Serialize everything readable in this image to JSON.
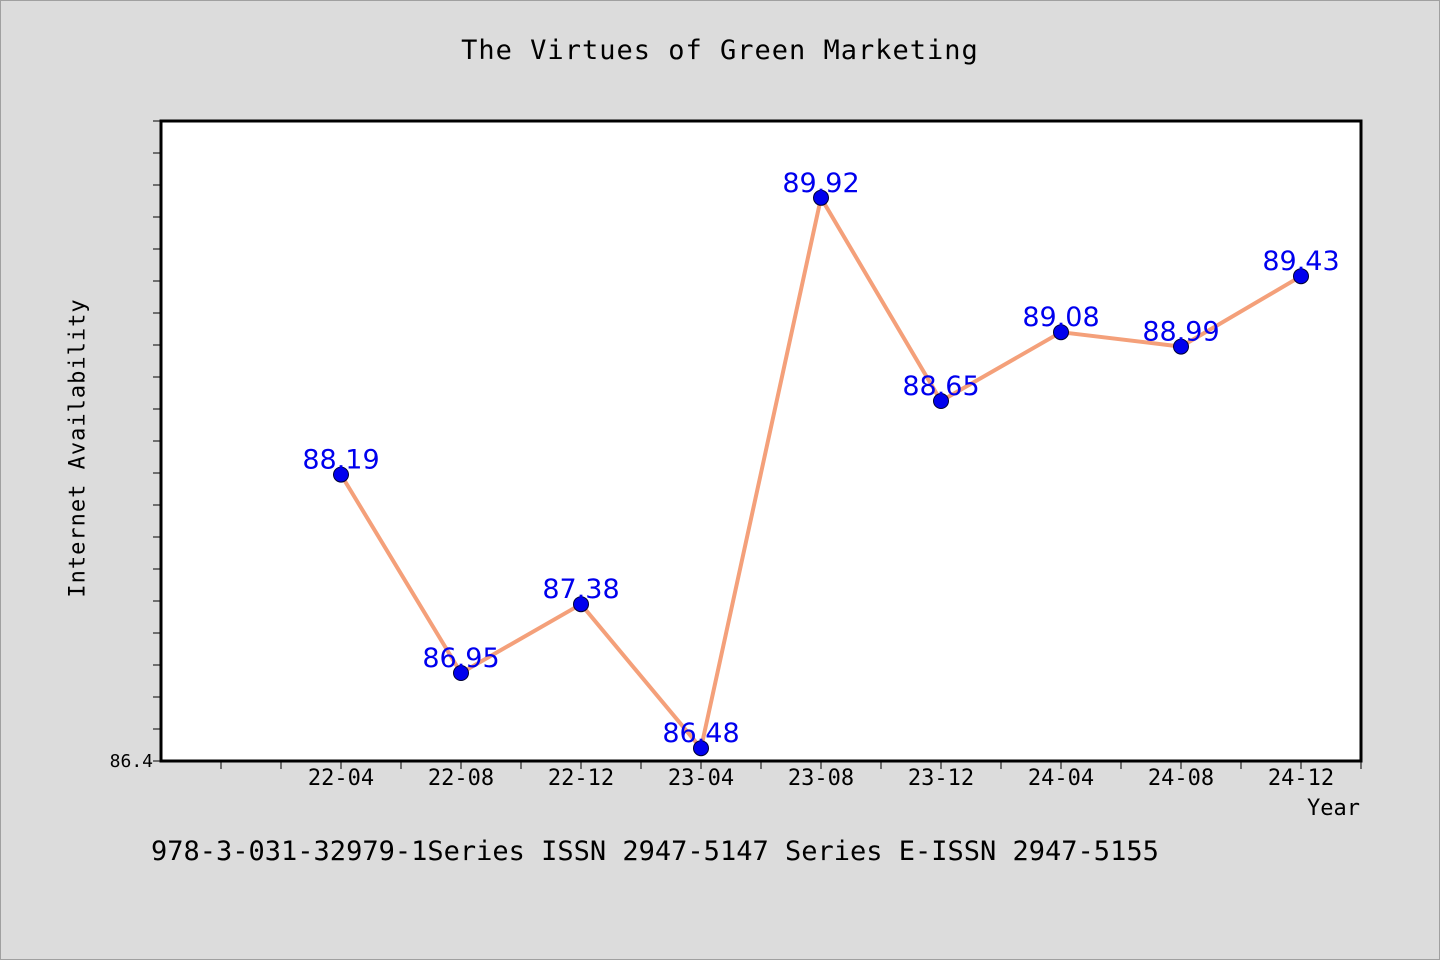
{
  "chart_data": {
    "type": "line",
    "title": "The Virtues of Green Marketing",
    "xlabel": "Year",
    "ylabel": "Internet Availability",
    "categories": [
      "22-04",
      "22-08",
      "22-12",
      "23-04",
      "23-08",
      "23-12",
      "24-04",
      "24-08",
      "24-12"
    ],
    "series": [
      {
        "values": [
          88.19,
          86.95,
          87.38,
          86.48,
          89.92,
          88.65,
          89.08,
          88.99,
          89.43
        ],
        "line_color": "#f4a07a",
        "marker_color": "#0000ee",
        "label_color": "#0000ee"
      }
    ],
    "y_tick_label": "86.4",
    "ylim": [
      86.4,
      90.4
    ],
    "grid": false,
    "legend": "none",
    "plot_background": "#ffffff",
    "page_background": "#dcdcdc"
  },
  "footnote": "978-3-031-32979-1Series ISSN 2947-5147 Series E-ISSN 2947-5155"
}
